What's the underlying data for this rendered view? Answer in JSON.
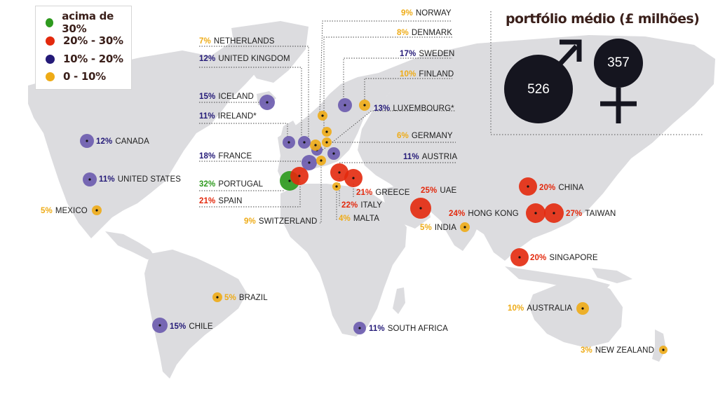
{
  "title": "portfólio médio (£ milhões)",
  "gender": {
    "male_value": "526",
    "female_value": "357",
    "male_symbol": "male-symbol",
    "female_symbol": "female-symbol"
  },
  "legend": [
    {
      "label": "acima de 30%",
      "color": "#2e9a1e"
    },
    {
      "label": "20% - 30%",
      "color": "#e3290d"
    },
    {
      "label": "10% - 20%",
      "color": "#241a78"
    },
    {
      "label": "0 - 10%",
      "color": "#eeab16"
    }
  ],
  "colors": {
    "green": "#2e9a1e",
    "red": "#e3290d",
    "purple": "#6a5aae",
    "yellow": "#eeab16",
    "map": "#dcdcdf",
    "dark": "#15151f"
  },
  "countries": [
    {
      "pct": "9%",
      "name": "NORWAY",
      "tier": "yellow"
    },
    {
      "pct": "8%",
      "name": "DENMARK",
      "tier": "yellow"
    },
    {
      "pct": "17%",
      "name": "SWEDEN",
      "tier": "purple"
    },
    {
      "pct": "10%",
      "name": "FINLAND",
      "tier": "yellow"
    },
    {
      "pct": "13%",
      "name": "LUXEMBOURG*",
      "tier": "purple"
    },
    {
      "pct": "6%",
      "name": "GERMANY",
      "tier": "yellow"
    },
    {
      "pct": "11%",
      "name": "AUSTRIA",
      "tier": "purple"
    },
    {
      "pct": "7%",
      "name": "NETHERLANDS",
      "tier": "yellow"
    },
    {
      "pct": "12%",
      "name": "UNITED KINGDOM",
      "tier": "purple"
    },
    {
      "pct": "15%",
      "name": "ICELAND",
      "tier": "purple"
    },
    {
      "pct": "11%",
      "name": "IRELAND*",
      "tier": "purple"
    },
    {
      "pct": "18%",
      "name": "FRANCE",
      "tier": "purple"
    },
    {
      "pct": "32%",
      "name": "PORTUGAL",
      "tier": "green"
    },
    {
      "pct": "21%",
      "name": "SPAIN",
      "tier": "red"
    },
    {
      "pct": "9%",
      "name": "SWITZERLAND",
      "tier": "yellow"
    },
    {
      "pct": "21%",
      "name": "GREECE",
      "tier": "red"
    },
    {
      "pct": "22%",
      "name": "ITALY",
      "tier": "red"
    },
    {
      "pct": "4%",
      "name": "MALTA",
      "tier": "yellow"
    },
    {
      "pct": "12%",
      "name": "CANADA",
      "tier": "purple"
    },
    {
      "pct": "11%",
      "name": "UNITED STATES",
      "tier": "purple"
    },
    {
      "pct": "5%",
      "name": "MEXICO",
      "tier": "yellow"
    },
    {
      "pct": "5%",
      "name": "BRAZIL",
      "tier": "yellow"
    },
    {
      "pct": "15%",
      "name": "CHILE",
      "tier": "purple"
    },
    {
      "pct": "11%",
      "name": "SOUTH AFRICA",
      "tier": "purple"
    },
    {
      "pct": "25%",
      "name": "UAE",
      "tier": "red"
    },
    {
      "pct": "5%",
      "name": "INDIA",
      "tier": "yellow"
    },
    {
      "pct": "20%",
      "name": "CHINA",
      "tier": "red"
    },
    {
      "pct": "24%",
      "name": "HONG KONG",
      "tier": "red"
    },
    {
      "pct": "27%",
      "name": "TAIWAN",
      "tier": "red"
    },
    {
      "pct": "20%",
      "name": "SINGAPORE",
      "tier": "red"
    },
    {
      "pct": "10%",
      "name": "AUSTRALIA",
      "tier": "yellow"
    },
    {
      "pct": "3%",
      "name": "NEW ZEALAND",
      "tier": "yellow"
    }
  ]
}
